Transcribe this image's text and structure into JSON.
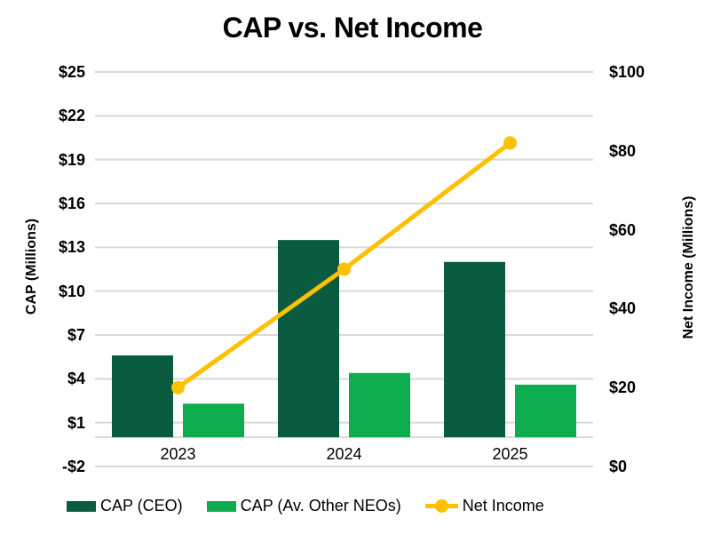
{
  "title": "CAP vs. Net Income",
  "chart_data": {
    "type": "bar",
    "subtype": "combo-bar-line-dual-axis",
    "categories": [
      "2023",
      "2024",
      "2025"
    ],
    "series": [
      {
        "name": "CAP (CEO)",
        "type": "bar",
        "axis": "left",
        "color": "#0A5B40",
        "values": [
          5.6,
          13.5,
          12.0
        ]
      },
      {
        "name": "CAP (Av. Other NEOs)",
        "type": "bar",
        "axis": "left",
        "color": "#0DAC4E",
        "values": [
          2.3,
          4.4,
          3.6
        ]
      },
      {
        "name": "Net Income",
        "type": "line",
        "axis": "right",
        "color": "#FFC000",
        "values": [
          20,
          50,
          82
        ]
      }
    ],
    "left_axis": {
      "label": "CAP (Millions)",
      "min": -2,
      "max": 25,
      "step": 3,
      "ticks": [
        "$25",
        "$22",
        "$19",
        "$16",
        "$13",
        "$10",
        "$7",
        "$4",
        "$1",
        "-$2"
      ]
    },
    "right_axis": {
      "label": "Net Income (Millions)",
      "min": 0,
      "max": 100,
      "step": 20,
      "ticks": [
        "$100",
        "$80",
        "$60",
        "$40",
        "$20",
        "$0"
      ]
    },
    "grid": true,
    "gridline_color": "#D9D9D9",
    "legend_position": "bottom"
  }
}
